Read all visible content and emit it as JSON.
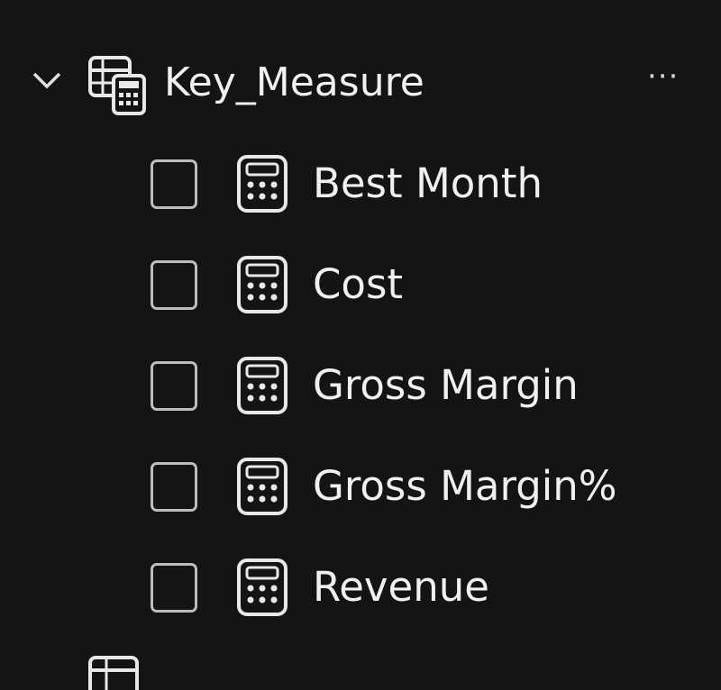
{
  "table": {
    "name": "Key_Measure",
    "icon": "table-calculator-icon",
    "expanded": true,
    "more_label": "···",
    "measures": [
      {
        "label": "Best Month",
        "checked": false,
        "icon": "calculator-icon"
      },
      {
        "label": "Cost",
        "checked": false,
        "icon": "calculator-icon"
      },
      {
        "label": "Gross Margin",
        "checked": false,
        "icon": "calculator-icon"
      },
      {
        "label": "Gross Margin%",
        "checked": false,
        "icon": "calculator-icon"
      },
      {
        "label": "Revenue",
        "checked": false,
        "icon": "calculator-icon"
      }
    ]
  },
  "next_table": {
    "icon": "table-icon"
  }
}
